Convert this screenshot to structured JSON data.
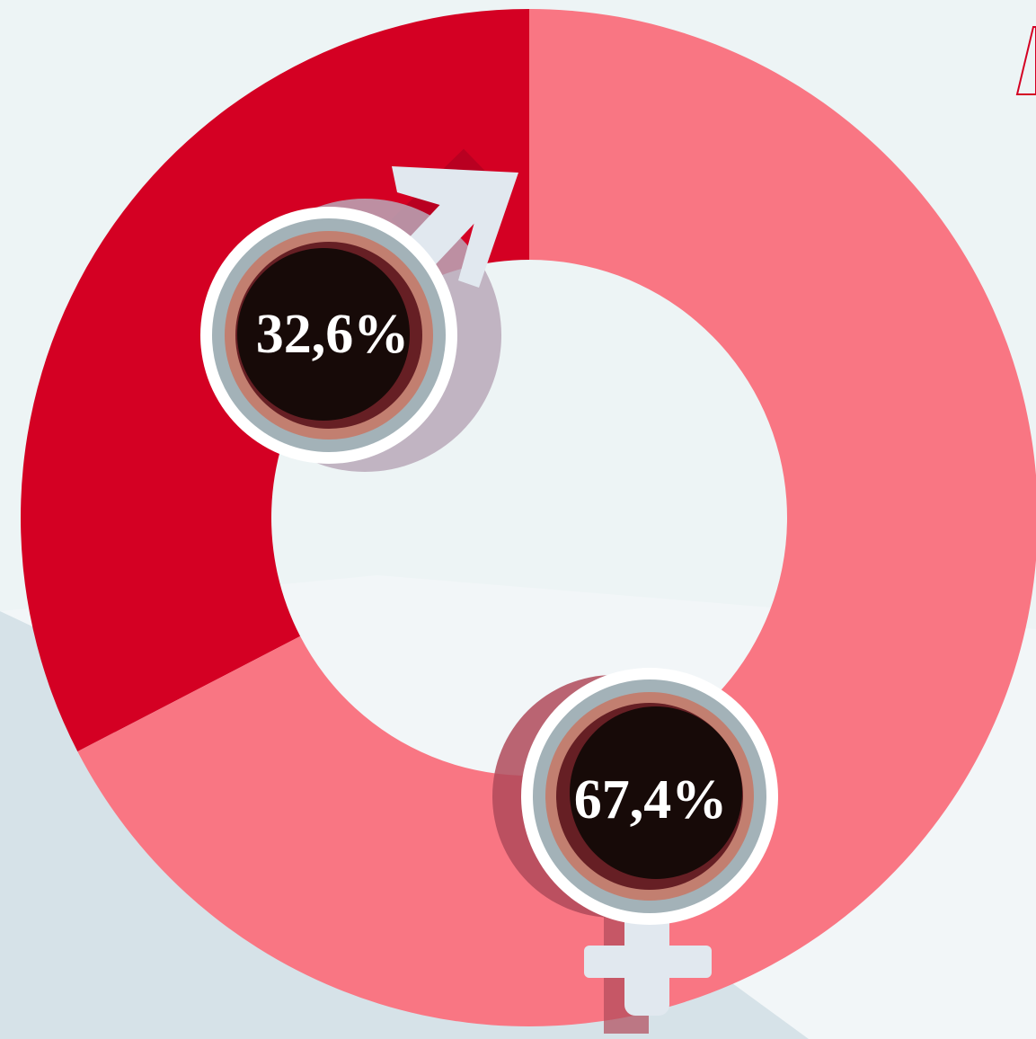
{
  "chart_data": {
    "type": "donut",
    "values": [
      32.6,
      67.4
    ],
    "value_labels": [
      "32,6%",
      "67,4%"
    ],
    "colors": [
      "#d40023",
      "#f97683"
    ]
  }
}
